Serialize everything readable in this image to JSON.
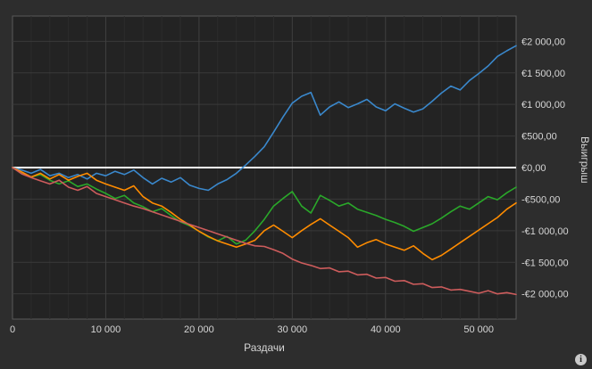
{
  "colors": {
    "page_bg": "#2d2d2d",
    "plot_bg": "#232323",
    "plot_border": "#595959",
    "grid_major": "#404040",
    "grid_minor": "#2c2c2c",
    "grid_horizontal": "#3a3a3a",
    "tick_text": "#d6d6d6",
    "zero_line": "#ffffff"
  },
  "footer": {
    "info_glyph": "i"
  },
  "chart_data": {
    "type": "line",
    "title": "",
    "xlabel": "Раздачи",
    "ylabel": "Выигрыш",
    "xlim": [
      0,
      54000
    ],
    "ylim": [
      -2400,
      2400
    ],
    "grid": true,
    "legend": "none",
    "x_start": 0,
    "x_step": 1000,
    "x_ticks": [
      {
        "value": 0,
        "label": "0"
      },
      {
        "value": 10000,
        "label": "10 000"
      },
      {
        "value": 20000,
        "label": "20 000"
      },
      {
        "value": 30000,
        "label": "30 000"
      },
      {
        "value": 40000,
        "label": "40 000"
      },
      {
        "value": 50000,
        "label": "50 000"
      }
    ],
    "y_ticks": [
      {
        "value": 2000,
        "label": "€2 000,00"
      },
      {
        "value": 1500,
        "label": "€1 500,00"
      },
      {
        "value": 1000,
        "label": "€1 000,00"
      },
      {
        "value": 500,
        "label": "€500,00"
      },
      {
        "value": 0,
        "label": "€0,00"
      },
      {
        "value": -500,
        "label": "-€500,00"
      },
      {
        "value": -1000,
        "label": "-€1 000,00"
      },
      {
        "value": -1500,
        "label": "-€1 500,00"
      },
      {
        "value": -2000,
        "label": "-€2 000,00"
      }
    ],
    "series": [
      {
        "name": "series-blue",
        "color": "#3a88cc",
        "values": [
          0,
          -40,
          -90,
          -30,
          -130,
          -90,
          -160,
          -110,
          -180,
          -90,
          -130,
          -60,
          -110,
          -40,
          -160,
          -260,
          -170,
          -230,
          -160,
          -280,
          -330,
          -360,
          -260,
          -190,
          -90,
          40,
          180,
          330,
          560,
          800,
          1020,
          1130,
          1190,
          830,
          960,
          1040,
          950,
          1010,
          1080,
          960,
          900,
          1010,
          940,
          880,
          930,
          1050,
          1180,
          1290,
          1230,
          1380,
          1490,
          1610,
          1760,
          1850,
          1930
        ]
      },
      {
        "name": "series-green",
        "color": "#2aa82a",
        "values": [
          0,
          -90,
          -150,
          -110,
          -200,
          -260,
          -210,
          -300,
          -260,
          -340,
          -410,
          -490,
          -440,
          -560,
          -620,
          -700,
          -650,
          -760,
          -860,
          -920,
          -1010,
          -1100,
          -1160,
          -1090,
          -1210,
          -1150,
          -1000,
          -820,
          -610,
          -490,
          -380,
          -610,
          -720,
          -440,
          -520,
          -610,
          -560,
          -660,
          -710,
          -760,
          -820,
          -870,
          -930,
          -1010,
          -950,
          -890,
          -800,
          -700,
          -610,
          -660,
          -560,
          -460,
          -510,
          -400,
          -310
        ]
      },
      {
        "name": "series-orange",
        "color": "#ff8c00",
        "values": [
          0,
          -70,
          -150,
          -90,
          -180,
          -110,
          -200,
          -140,
          -90,
          -200,
          -260,
          -310,
          -360,
          -290,
          -460,
          -560,
          -610,
          -710,
          -820,
          -910,
          -1010,
          -1090,
          -1160,
          -1210,
          -1260,
          -1210,
          -1150,
          -1000,
          -910,
          -1010,
          -1110,
          -1000,
          -900,
          -810,
          -910,
          -1010,
          -1110,
          -1260,
          -1190,
          -1140,
          -1210,
          -1260,
          -1310,
          -1240,
          -1360,
          -1460,
          -1390,
          -1290,
          -1190,
          -1090,
          -990,
          -890,
          -790,
          -660,
          -560
        ]
      },
      {
        "name": "series-red",
        "color": "#cd5c5c",
        "values": [
          0,
          -100,
          -160,
          -210,
          -260,
          -200,
          -310,
          -360,
          -300,
          -410,
          -460,
          -510,
          -560,
          -610,
          -650,
          -700,
          -750,
          -800,
          -850,
          -900,
          -950,
          -1000,
          -1050,
          -1100,
          -1150,
          -1200,
          -1240,
          -1250,
          -1300,
          -1360,
          -1450,
          -1510,
          -1550,
          -1600,
          -1590,
          -1650,
          -1640,
          -1700,
          -1690,
          -1750,
          -1740,
          -1800,
          -1790,
          -1850,
          -1840,
          -1900,
          -1890,
          -1940,
          -1930,
          -1960,
          -1990,
          -1950,
          -2000,
          -1980,
          -2010
        ]
      }
    ]
  }
}
